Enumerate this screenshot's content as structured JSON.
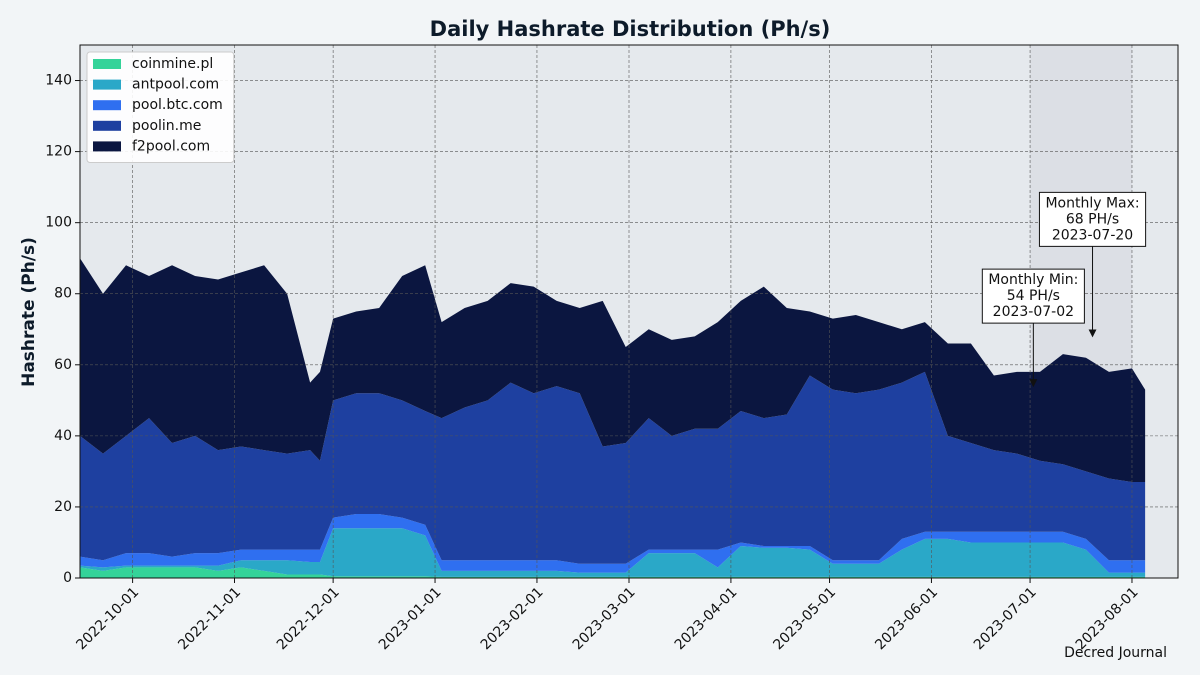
{
  "chart_data": {
    "type": "stacked_area",
    "title": "Daily Hashrate Distribution (Ph/s)",
    "y_label": "Hashrate (Ph/s)",
    "footer": "Decred Journal",
    "x": [
      "2022-09-15",
      "2022-09-22",
      "2022-09-29",
      "2022-10-06",
      "2022-10-13",
      "2022-10-20",
      "2022-10-27",
      "2022-11-03",
      "2022-11-10",
      "2022-11-17",
      "2022-11-24",
      "2022-11-27",
      "2022-12-01",
      "2022-12-08",
      "2022-12-15",
      "2022-12-22",
      "2022-12-29",
      "2023-01-03",
      "2023-01-10",
      "2023-01-17",
      "2023-01-24",
      "2023-01-31",
      "2023-02-07",
      "2023-02-14",
      "2023-02-21",
      "2023-02-28",
      "2023-03-07",
      "2023-03-14",
      "2023-03-21",
      "2023-03-28",
      "2023-04-04",
      "2023-04-11",
      "2023-04-18",
      "2023-04-25",
      "2023-05-02",
      "2023-05-09",
      "2023-05-16",
      "2023-05-23",
      "2023-05-30",
      "2023-06-06",
      "2023-06-13",
      "2023-06-20",
      "2023-06-27",
      "2023-07-04",
      "2023-07-11",
      "2023-07-18",
      "2023-07-25",
      "2023-08-01",
      "2023-08-05"
    ],
    "series": [
      {
        "name": "coinmine.pl",
        "color": "#34d399",
        "values": [
          3,
          2,
          3,
          3,
          3,
          3,
          2,
          3,
          2,
          1,
          1,
          1,
          0.5,
          0.5,
          0.5,
          0.5,
          0.5,
          0.3,
          0.3,
          0.3,
          0.3,
          0.3,
          0.3,
          0.3,
          0.3,
          0.3,
          0.3,
          0.3,
          0.3,
          0.3,
          0.3,
          0.3,
          0.3,
          0.3,
          0.3,
          0.3,
          0.3,
          0.3,
          0.3,
          0.3,
          0.3,
          0.3,
          0.3,
          0.3,
          0.3,
          0.3,
          0.3,
          0.3,
          0.3
        ]
      },
      {
        "name": "antpool.com",
        "color": "#2aa8c8",
        "values": [
          0.5,
          1,
          0.5,
          0.5,
          0.5,
          0.5,
          1.5,
          2,
          3,
          4,
          3.5,
          3.5,
          13.5,
          13.5,
          13.5,
          13.5,
          11.5,
          1.7,
          1.7,
          1.7,
          1.7,
          1.7,
          1.7,
          1.2,
          1.2,
          1.2,
          6.7,
          6.7,
          6.7,
          2.7,
          8.7,
          8.2,
          8.2,
          7.7,
          3.7,
          3.7,
          3.7,
          7.7,
          10.7,
          10.7,
          9.7,
          9.7,
          9.7,
          9.7,
          9.7,
          7.7,
          1.2,
          1.2,
          1.2
        ]
      },
      {
        "name": "pool.btc.com",
        "color": "#2f6ff0",
        "values": [
          2.5,
          2,
          3.5,
          3.5,
          2.5,
          3.5,
          3.5,
          3,
          3,
          3,
          3.5,
          3.5,
          3,
          4,
          4,
          3,
          3,
          3,
          3,
          3,
          3,
          3,
          3,
          2.5,
          2.5,
          2.5,
          1,
          1,
          1,
          5,
          1,
          0.5,
          0.5,
          1,
          1,
          1,
          1,
          3,
          2,
          2,
          3,
          3,
          3,
          3,
          3,
          3,
          3.5,
          3.5,
          3.5
        ]
      },
      {
        "name": "poolin.me",
        "color": "#1e40a0",
        "values": [
          34,
          30,
          33,
          38,
          32,
          33,
          29,
          29,
          28,
          27,
          28,
          25,
          33,
          34,
          34,
          33,
          32,
          40,
          43,
          45,
          50,
          47,
          49,
          48,
          33,
          34,
          37,
          32,
          34,
          34,
          37,
          36,
          37,
          48,
          48,
          47,
          48,
          44,
          45,
          27,
          25,
          23,
          22,
          20,
          19,
          19,
          23,
          22,
          22
        ]
      },
      {
        "name": "f2pool.com",
        "color": "#0b1640",
        "values": [
          50,
          45,
          48,
          40,
          50,
          45,
          48,
          49,
          52,
          45,
          19,
          25,
          23,
          23,
          24,
          35,
          41,
          27,
          28,
          28,
          28,
          30,
          24,
          24,
          41,
          27,
          25,
          27,
          26,
          30,
          31,
          37,
          30,
          18,
          20,
          22,
          19,
          15,
          14,
          26,
          28,
          21,
          23,
          25,
          31,
          32,
          30,
          32,
          26
        ]
      }
    ],
    "xlim": [
      "2022-09-15",
      "2023-08-15"
    ],
    "xticks": [
      "2022-10-01",
      "2022-11-01",
      "2022-12-01",
      "2023-01-01",
      "2023-02-01",
      "2023-03-01",
      "2023-04-01",
      "2023-05-01",
      "2023-06-01",
      "2023-07-01",
      "2023-08-01"
    ],
    "ylim": [
      0,
      150
    ],
    "yticks": [
      0,
      20,
      40,
      60,
      80,
      100,
      120,
      140
    ],
    "grid": true,
    "legend": "upper left",
    "highlight": [
      "2023-07-01",
      "2023-08-01"
    ],
    "annotations": [
      {
        "lines": [
          "Monthly Max:",
          "68 PH/s",
          "2023-07-20"
        ],
        "x": "2023-07-20",
        "y": 68
      },
      {
        "lines": [
          "Monthly Min:",
          "54 PH/s",
          "2023-07-02"
        ],
        "x": "2023-07-02",
        "y": 54
      }
    ]
  }
}
